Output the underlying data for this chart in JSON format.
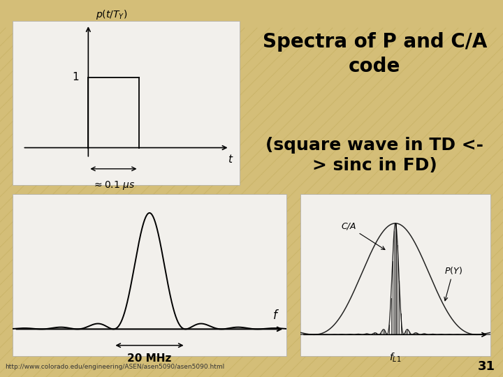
{
  "slide_bg": "#D4BE78",
  "stripe_color": "#C4AE60",
  "panel_bg": "#F2F0EC",
  "title_text": "Spectra of P and C/A\ncode",
  "subtitle_text": "(square wave in TD <-\n> sinc in FD)",
  "title_fontsize": 20,
  "subtitle_fontsize": 18,
  "footer_text": "http://www.colorado.edu/engineering/ASEN/asen5090/asen5090.html",
  "page_number": "31"
}
